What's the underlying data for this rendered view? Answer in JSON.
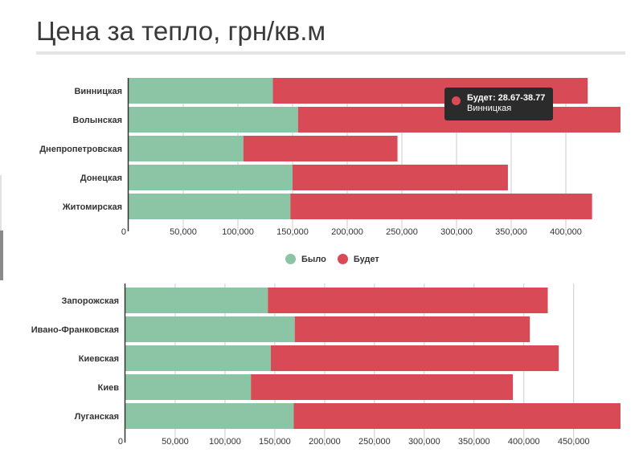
{
  "page": {
    "title": "Цена за тепло, грн/кв.м"
  },
  "colors": {
    "bylo": "#8cc5a5",
    "budet": "#d84a56",
    "grid": "#cccccc"
  },
  "legend": {
    "items": [
      {
        "label": "Было",
        "color": "#8cc5a5"
      },
      {
        "label": "Будет",
        "color": "#d84a56"
      }
    ]
  },
  "tooltip": {
    "line1": "Будет: 28.67-38.77",
    "line2": "Винницкая",
    "color": "#d84a56"
  },
  "chart_data": [
    {
      "type": "bar",
      "orientation": "horizontal",
      "stacked": true,
      "categories": [
        "Винницкая",
        "Волынская",
        "Днепропетровская",
        "Донецкая",
        "Житомирская"
      ],
      "series": [
        {
          "name": "Было",
          "values": [
            132000,
            155000,
            105000,
            150000,
            148000
          ]
        },
        {
          "name": "Будет",
          "values": [
            288000,
            295000,
            141000,
            197000,
            276000
          ]
        }
      ],
      "ticks": [
        0,
        50000,
        100000,
        150000,
        200000,
        250000,
        300000,
        350000,
        400000
      ],
      "tick_labels": [
        "0",
        "50,000",
        "100,000",
        "150,000",
        "200,000",
        "250,000",
        "300,000",
        "350,000",
        "400,000"
      ],
      "xlim": [
        0,
        450000
      ],
      "grid": true
    },
    {
      "type": "bar",
      "orientation": "horizontal",
      "stacked": true,
      "categories": [
        "Запорожская",
        "Ивано-Франковская",
        "Киевская",
        "Киев",
        "Луганская"
      ],
      "series": [
        {
          "name": "Было",
          "values": [
            143000,
            170000,
            146000,
            126000,
            169000
          ]
        },
        {
          "name": "Будет",
          "values": [
            281000,
            236000,
            289000,
            263000,
            328000
          ]
        }
      ],
      "ticks": [
        0,
        50000,
        100000,
        150000,
        200000,
        250000,
        300000,
        350000,
        400000,
        450000
      ],
      "tick_labels": [
        "0",
        "50,000",
        "100,000",
        "150,000",
        "200,000",
        "250,000",
        "300,000",
        "350,000",
        "400,000",
        "450,000"
      ],
      "xlim": [
        0,
        497000
      ],
      "grid": true
    }
  ]
}
